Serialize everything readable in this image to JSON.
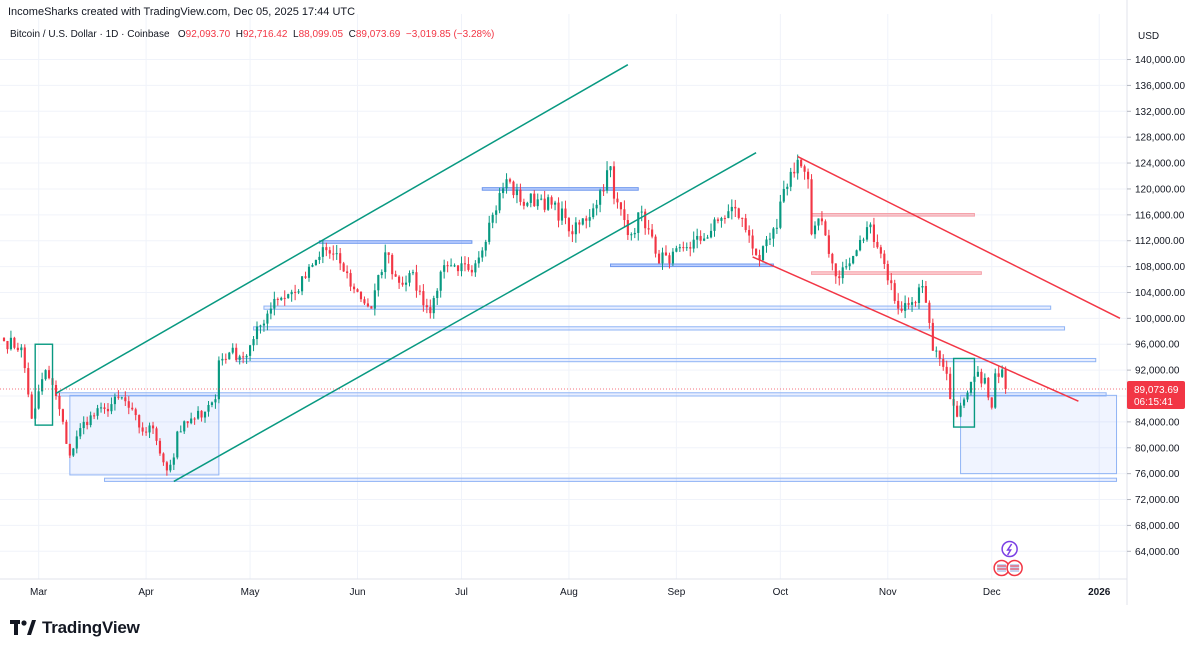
{
  "header": {
    "credit": "IncomeSharks created with TradingView.com, Dec 05, 2025 17:44 UTC"
  },
  "symbol": {
    "name": "Bitcoin / U.S. Dollar · 1D · Coinbase",
    "open_label": "O",
    "open": "92,093.70",
    "high_label": "H",
    "high": "92,716.42",
    "low_label": "L",
    "low": "88,099.05",
    "close_label": "C",
    "close": "89,073.69",
    "change": "−3,019.85 (−3.28%)"
  },
  "chart_data": {
    "type": "candlestick",
    "currency_label": "USD",
    "y_ticks": [
      "64,000.00",
      "68,000.00",
      "72,000.00",
      "76,000.00",
      "80,000.00",
      "84,000.00",
      "88,000.00",
      "92,000.00",
      "96,000.00",
      "100,000.00",
      "104,000.00",
      "108,000.00",
      "112,000.00",
      "116,000.00",
      "120,000.00",
      "124,000.00",
      "128,000.00",
      "132,000.00",
      "136,000.00",
      "140,000.00"
    ],
    "y_tick_values": [
      64000,
      68000,
      72000,
      76000,
      80000,
      84000,
      88000,
      92000,
      96000,
      100000,
      104000,
      108000,
      112000,
      116000,
      120000,
      124000,
      128000,
      132000,
      136000,
      140000
    ],
    "ylim": [
      60800,
      142400
    ],
    "x_ticks": [
      "Mar",
      "Apr",
      "May",
      "Jun",
      "Jul",
      "Aug",
      "Sep",
      "Oct",
      "Nov",
      "Dec",
      "2026"
    ],
    "x_range": [
      "2025-02-19",
      "2026-01-07"
    ],
    "x_tick_dates": [
      "2025-03-01",
      "2025-04-01",
      "2025-05-01",
      "2025-06-01",
      "2025-07-01",
      "2025-08-01",
      "2025-09-01",
      "2025-10-01",
      "2025-11-01",
      "2025-12-01",
      "2026-01-01"
    ],
    "last_price": {
      "value": 89073.69,
      "label": "89,073.69",
      "countdown": "06:15:41"
    },
    "colors": {
      "up": "#089981",
      "down": "#f23645",
      "channel_green": "#089981",
      "channel_red": "#f23645",
      "zone": "#2962ff",
      "resistance_red": "#f23645"
    },
    "anchors": [
      [
        "2025-02-19",
        96500
      ],
      [
        "2025-02-24",
        95500
      ],
      [
        "2025-02-27",
        84500
      ],
      [
        "2025-03-03",
        92000
      ],
      [
        "2025-03-06",
        88000
      ],
      [
        "2025-03-10",
        78800
      ],
      [
        "2025-03-14",
        84000
      ],
      [
        "2025-03-20",
        86000
      ],
      [
        "2025-03-25",
        87800
      ],
      [
        "2025-03-31",
        82500
      ],
      [
        "2025-04-03",
        83000
      ],
      [
        "2025-04-07",
        76500
      ],
      [
        "2025-04-09",
        78500
      ],
      [
        "2025-04-10",
        82500
      ],
      [
        "2025-04-15",
        84500
      ],
      [
        "2025-04-21",
        87500
      ],
      [
        "2025-04-22",
        93500
      ],
      [
        "2025-04-25",
        94700
      ],
      [
        "2025-04-30",
        94200
      ],
      [
        "2025-05-02",
        96800
      ],
      [
        "2025-05-08",
        103000
      ],
      [
        "2025-05-14",
        104000
      ],
      [
        "2025-05-21",
        109500
      ],
      [
        "2025-05-22",
        111000
      ],
      [
        "2025-05-27",
        108500
      ],
      [
        "2025-05-31",
        104500
      ],
      [
        "2025-06-05",
        101500
      ],
      [
        "2025-06-09",
        110200
      ],
      [
        "2025-06-13",
        105500
      ],
      [
        "2025-06-16",
        107000
      ],
      [
        "2025-06-22",
        100800
      ],
      [
        "2025-06-25",
        107200
      ],
      [
        "2025-06-30",
        107300
      ],
      [
        "2025-07-05",
        108500
      ],
      [
        "2025-07-10",
        116000
      ],
      [
        "2025-07-14",
        121500
      ],
      [
        "2025-07-18",
        118000
      ],
      [
        "2025-07-24",
        118500
      ],
      [
        "2025-07-31",
        115500
      ],
      [
        "2025-08-02",
        113000
      ],
      [
        "2025-08-08",
        117000
      ],
      [
        "2025-08-13",
        123500
      ],
      [
        "2025-08-14",
        118500
      ],
      [
        "2025-08-19",
        113000
      ],
      [
        "2025-08-22",
        116500
      ],
      [
        "2025-08-26",
        110000
      ],
      [
        "2025-08-30",
        108500
      ],
      [
        "2025-09-03",
        111000
      ],
      [
        "2025-09-08",
        112000
      ],
      [
        "2025-09-14",
        115500
      ],
      [
        "2025-09-18",
        117000
      ],
      [
        "2025-09-22",
        112800
      ],
      [
        "2025-09-25",
        109000
      ],
      [
        "2025-09-30",
        114000
      ],
      [
        "2025-10-02",
        120000
      ],
      [
        "2025-10-06",
        124500
      ],
      [
        "2025-10-09",
        121500
      ],
      [
        "2025-10-10",
        113000
      ],
      [
        "2025-10-13",
        115000
      ],
      [
        "2025-10-17",
        106500
      ],
      [
        "2025-10-21",
        108500
      ],
      [
        "2025-10-27",
        114500
      ],
      [
        "2025-10-30",
        110000
      ],
      [
        "2025-11-04",
        101500
      ],
      [
        "2025-11-08",
        102500
      ],
      [
        "2025-11-11",
        105000
      ],
      [
        "2025-11-14",
        95000
      ],
      [
        "2025-11-17",
        92500
      ],
      [
        "2025-11-20",
        86500
      ],
      [
        "2025-11-21",
        84800
      ],
      [
        "2025-11-24",
        88500
      ],
      [
        "2025-11-26",
        91000
      ],
      [
        "2025-11-29",
        90800
      ],
      [
        "2025-12-01",
        86200
      ],
      [
        "2025-12-02",
        91500
      ],
      [
        "2025-12-04",
        92100
      ],
      [
        "2025-12-05",
        89074
      ]
    ]
  }
}
